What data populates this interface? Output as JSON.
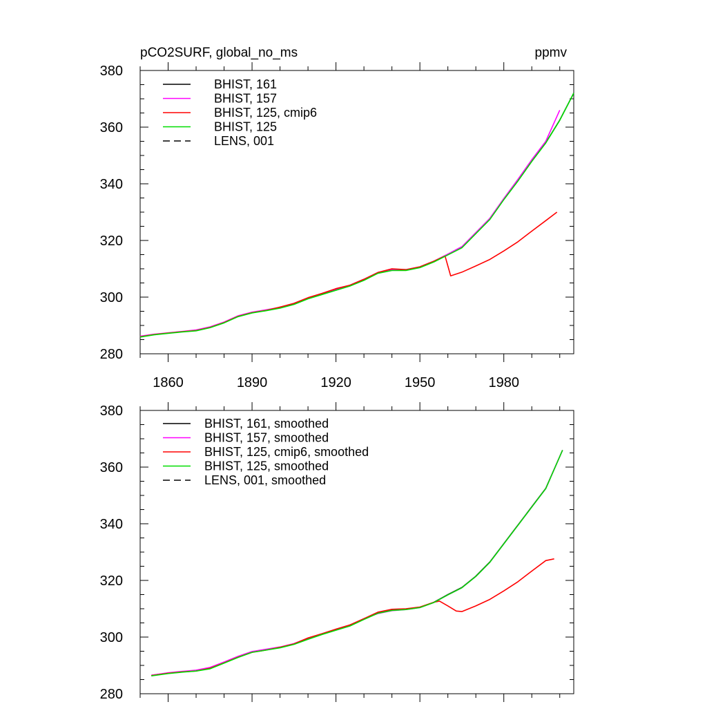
{
  "chart_data": [
    {
      "type": "line",
      "title": "pCO2SURF, global_no_ms",
      "units": "ppmv",
      "xlim": [
        1850,
        2005
      ],
      "ylim": [
        280,
        380
      ],
      "xticks": [
        1860,
        1890,
        1920,
        1950,
        1980
      ],
      "yticks": [
        280,
        300,
        320,
        340,
        360,
        380
      ],
      "legend_position": "top-left",
      "grid": false,
      "series": [
        {
          "name": "BHIST, 161",
          "color": "#000000",
          "dash": "solid",
          "x": [
            1850,
            1855,
            1860,
            1865,
            1870,
            1875,
            1880,
            1885,
            1890,
            1895,
            1900,
            1905,
            1910,
            1915,
            1920,
            1925,
            1930,
            1935,
            1940,
            1945,
            1950,
            1955,
            1960,
            1965,
            1970,
            1975,
            1980,
            1985,
            1990,
            1995,
            2000,
            2005
          ],
          "y": [
            286,
            286.8,
            287.3,
            287.8,
            288.2,
            289.3,
            291,
            293.2,
            294.5,
            295.3,
            296.2,
            297.5,
            299.5,
            301,
            302.5,
            304,
            306,
            308.5,
            309.5,
            309.5,
            310.5,
            312.5,
            315,
            317.5,
            322.5,
            327.5,
            334.5,
            341,
            348,
            354.5,
            362.5,
            372
          ]
        },
        {
          "name": "BHIST, 157",
          "color": "#ff00ff",
          "dash": "solid",
          "x": [
            1850,
            1855,
            1860,
            1865,
            1870,
            1875,
            1880,
            1885,
            1890,
            1895,
            1900,
            1905,
            1910,
            1915,
            1920,
            1925,
            1930,
            1935,
            1940,
            1945,
            1950,
            1955,
            1960,
            1965,
            1970,
            1975,
            1980,
            1985,
            1990,
            1995,
            2000
          ],
          "y": [
            286.2,
            286.9,
            287.4,
            287.9,
            288.4,
            289.5,
            291.2,
            293.4,
            294.7,
            295.5,
            296.4,
            297.8,
            299.7,
            301.3,
            302.8,
            304.2,
            306.3,
            308.7,
            309.7,
            309.7,
            310.7,
            312.7,
            315.2,
            317.8,
            322.8,
            327.8,
            334.8,
            341.5,
            348.5,
            355,
            366
          ]
        },
        {
          "name": "BHIST, 125, cmip6",
          "color": "#ff0000",
          "dash": "solid",
          "x": [
            1850,
            1855,
            1860,
            1865,
            1870,
            1875,
            1880,
            1885,
            1890,
            1895,
            1900,
            1905,
            1910,
            1915,
            1920,
            1925,
            1930,
            1935,
            1940,
            1945,
            1950,
            1955,
            1959,
            1960,
            1961,
            1965,
            1970,
            1975,
            1980,
            1985,
            1990,
            1995,
            1999
          ],
          "y": [
            286,
            286.8,
            287.3,
            287.8,
            288.2,
            289.3,
            291,
            293.2,
            294.5,
            295.3,
            296.5,
            297.8,
            299.8,
            301.3,
            303,
            304.2,
            306.3,
            308.7,
            310,
            309.7,
            310.7,
            312.7,
            314.5,
            311,
            307.5,
            308.8,
            311,
            313.3,
            316.3,
            319.5,
            323.3,
            327,
            330
          ]
        },
        {
          "name": "BHIST, 125",
          "color": "#00dd00",
          "dash": "solid",
          "x": [
            1850,
            1855,
            1860,
            1865,
            1870,
            1875,
            1880,
            1885,
            1890,
            1895,
            1900,
            1905,
            1910,
            1915,
            1920,
            1925,
            1930,
            1935,
            1940,
            1945,
            1950,
            1955,
            1960,
            1965,
            1970,
            1975,
            1980,
            1985,
            1990,
            1995,
            2000,
            2005
          ],
          "y": [
            285.9,
            286.7,
            287.2,
            287.7,
            288.1,
            289.2,
            290.9,
            293.1,
            294.4,
            295.2,
            296.1,
            297.4,
            299.4,
            300.9,
            302.4,
            303.9,
            305.9,
            308.4,
            309.4,
            309.4,
            310.4,
            312.4,
            314.9,
            317.4,
            322.4,
            327.4,
            334.4,
            340.9,
            347.9,
            354.4,
            362.4,
            372
          ]
        },
        {
          "name": "LENS, 001",
          "color": "#000000",
          "dash": "dashed",
          "x": [],
          "y": []
        }
      ]
    },
    {
      "type": "line",
      "title": "",
      "xlim": [
        1850,
        2005
      ],
      "ylim": [
        280,
        380
      ],
      "xticks": [
        1860,
        1890,
        1920,
        1950,
        1980
      ],
      "yticks": [
        280,
        300,
        320,
        340,
        360,
        380
      ],
      "legend_position": "top-left",
      "grid": false,
      "series": [
        {
          "name": "BHIST, 161, smoothed",
          "color": "#000000",
          "dash": "solid",
          "x": [
            1854,
            1860,
            1865,
            1870,
            1875,
            1880,
            1885,
            1890,
            1895,
            1900,
            1905,
            1910,
            1915,
            1920,
            1925,
            1930,
            1935,
            1940,
            1945,
            1950,
            1955,
            1960,
            1965,
            1970,
            1975,
            1980,
            1985,
            1990,
            1995,
            2001
          ],
          "y": [
            286.5,
            287.3,
            287.8,
            288.2,
            289,
            291,
            293,
            294.7,
            295.5,
            296.3,
            297.5,
            299.3,
            301,
            302.5,
            304,
            306.3,
            308.5,
            309.5,
            309.8,
            310.5,
            312.3,
            315,
            317.5,
            321.5,
            326.5,
            333,
            339.5,
            346,
            352.5,
            366
          ]
        },
        {
          "name": "BHIST, 157, smoothed",
          "color": "#ff00ff",
          "dash": "solid",
          "x": [
            1854,
            1860,
            1865,
            1870,
            1875,
            1880,
            1885,
            1890,
            1895,
            1900,
            1905,
            1910,
            1915,
            1920,
            1925,
            1930,
            1935,
            1940,
            1945,
            1950,
            1955,
            1960,
            1965,
            1970,
            1975,
            1980,
            1985,
            1990,
            1995,
            2001
          ],
          "y": [
            286.5,
            287.4,
            287.9,
            288.3,
            289.3,
            291.2,
            293.2,
            294.9,
            295.7,
            296.5,
            297.7,
            299.6,
            301.2,
            302.7,
            304.2,
            306.5,
            308.3,
            309.3,
            309.7,
            310.4,
            312.2,
            314.9,
            317.4,
            321.4,
            326.4,
            332.9,
            339.4,
            345.9,
            352.4,
            366
          ]
        },
        {
          "name": "BHIST, 125, cmip6, smoothed",
          "color": "#ff0000",
          "dash": "solid",
          "x": [
            1854,
            1860,
            1865,
            1870,
            1875,
            1880,
            1885,
            1890,
            1895,
            1900,
            1905,
            1910,
            1915,
            1920,
            1925,
            1930,
            1935,
            1940,
            1945,
            1950,
            1955,
            1957,
            1960,
            1963,
            1965,
            1970,
            1975,
            1980,
            1985,
            1990,
            1995,
            1998
          ],
          "y": [
            286.4,
            287.2,
            287.7,
            288,
            289,
            290.9,
            292.9,
            294.6,
            295.4,
            296.4,
            297.6,
            299.7,
            301.2,
            302.8,
            304.3,
            306.5,
            308.8,
            309.8,
            310,
            310.6,
            312.3,
            312.7,
            311,
            309.2,
            309,
            311,
            313.3,
            316.3,
            319.5,
            323.3,
            327,
            327.6
          ]
        },
        {
          "name": "BHIST, 125, smoothed",
          "color": "#00dd00",
          "dash": "solid",
          "x": [
            1854,
            1860,
            1865,
            1870,
            1875,
            1880,
            1885,
            1890,
            1895,
            1900,
            1905,
            1910,
            1915,
            1920,
            1925,
            1930,
            1935,
            1940,
            1945,
            1950,
            1955,
            1960,
            1965,
            1970,
            1975,
            1980,
            1985,
            1990,
            1995,
            2001
          ],
          "y": [
            286.3,
            287.1,
            287.6,
            288,
            288.8,
            290.8,
            292.8,
            294.6,
            295.4,
            296.2,
            297.4,
            299.2,
            300.9,
            302.4,
            303.9,
            306.2,
            308.4,
            309.4,
            309.7,
            310.4,
            312.2,
            314.9,
            317.4,
            321.4,
            326.4,
            332.9,
            339.4,
            345.9,
            352.4,
            366
          ]
        },
        {
          "name": "LENS, 001, smoothed",
          "color": "#000000",
          "dash": "dashed",
          "x": [],
          "y": []
        }
      ]
    }
  ]
}
